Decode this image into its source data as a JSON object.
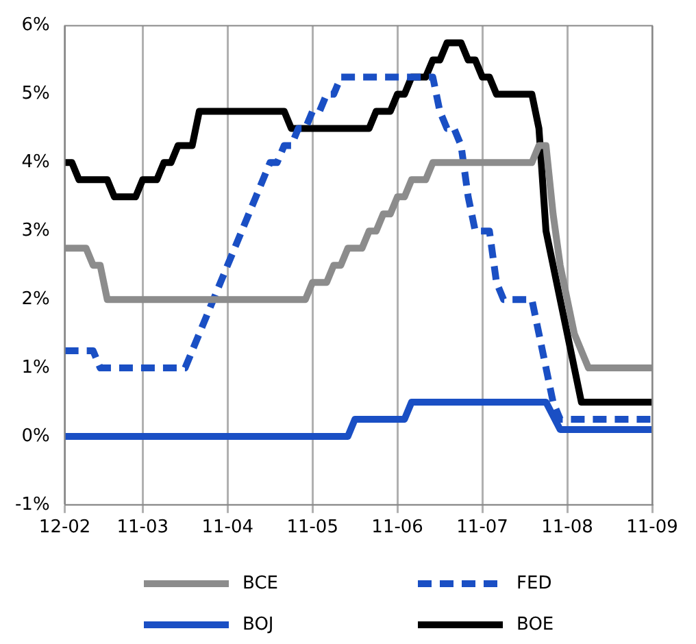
{
  "chart_data": {
    "type": "line",
    "legend": "bottom",
    "grid": "x",
    "marker": "none",
    "categories": [
      "12-02",
      null,
      null,
      null,
      null,
      null,
      null,
      null,
      null,
      null,
      null,
      "11-03",
      null,
      null,
      null,
      null,
      null,
      null,
      null,
      null,
      null,
      null,
      null,
      "11-04",
      null,
      null,
      null,
      null,
      null,
      null,
      null,
      null,
      null,
      null,
      null,
      "11-05",
      null,
      null,
      null,
      null,
      null,
      null,
      null,
      null,
      null,
      null,
      null,
      "11-06",
      null,
      null,
      null,
      null,
      null,
      null,
      null,
      null,
      null,
      null,
      null,
      "11-07",
      null,
      null,
      null,
      null,
      null,
      null,
      null,
      null,
      null,
      null,
      null,
      "11-08",
      null,
      null,
      null,
      null,
      null,
      null,
      null,
      null,
      null,
      null,
      null,
      "11-09"
    ],
    "ylim": [
      -1,
      6
    ],
    "yticks": [
      {
        "value": -1,
        "label": "-1%"
      },
      {
        "value": 0,
        "label": "0%"
      },
      {
        "value": 1,
        "label": "1%"
      },
      {
        "value": 2,
        "label": "2%"
      },
      {
        "value": 3,
        "label": "3%"
      },
      {
        "value": 4,
        "label": "4%"
      },
      {
        "value": 5,
        "label": "5%"
      },
      {
        "value": 6,
        "label": "6%"
      }
    ],
    "series": [
      {
        "name": "BCE",
        "color": "#8c8c8c",
        "line_style": "solid",
        "values": [
          2.75,
          2.75,
          2.75,
          2.75,
          2.5,
          2.5,
          2.0,
          2.0,
          2.0,
          2.0,
          2.0,
          2.0,
          2.0,
          2.0,
          2.0,
          2.0,
          2.0,
          2.0,
          2.0,
          2.0,
          2.0,
          2.0,
          2.0,
          2.0,
          2.0,
          2.0,
          2.0,
          2.0,
          2.0,
          2.0,
          2.0,
          2.0,
          2.0,
          2.0,
          2.0,
          2.25,
          2.25,
          2.25,
          2.5,
          2.5,
          2.75,
          2.75,
          2.75,
          3.0,
          3.0,
          3.25,
          3.25,
          3.5,
          3.5,
          3.75,
          3.75,
          3.75,
          4.0,
          4.0,
          4.0,
          4.0,
          4.0,
          4.0,
          4.0,
          4.0,
          4.0,
          4.0,
          4.0,
          4.0,
          4.0,
          4.0,
          4.0,
          4.25,
          4.25,
          3.25,
          2.5,
          2.0,
          1.5,
          1.25,
          1.0,
          1.0,
          1.0,
          1.0,
          1.0,
          1.0,
          1.0,
          1.0,
          1.0,
          1.0
        ]
      },
      {
        "name": "FED",
        "color": "#1a4fc4",
        "line_style": "dashed",
        "values": [
          1.25,
          1.25,
          1.25,
          1.25,
          1.25,
          1.0,
          1.0,
          1.0,
          1.0,
          1.0,
          1.0,
          1.0,
          1.0,
          1.0,
          1.0,
          1.0,
          1.0,
          1.0,
          1.25,
          1.5,
          1.75,
          2.0,
          2.25,
          2.5,
          2.75,
          3.0,
          3.25,
          3.5,
          3.75,
          4.0,
          4.0,
          4.25,
          4.25,
          4.5,
          4.5,
          4.75,
          4.75,
          5.0,
          5.0,
          5.25,
          5.25,
          5.25,
          5.25,
          5.25,
          5.25,
          5.25,
          5.25,
          5.25,
          5.25,
          5.25,
          5.25,
          5.25,
          5.25,
          4.75,
          4.5,
          4.5,
          4.25,
          3.5,
          3.0,
          3.0,
          3.0,
          2.25,
          2.0,
          2.0,
          2.0,
          2.0,
          2.0,
          1.5,
          1.0,
          0.5,
          0.25,
          0.25,
          0.25,
          0.25,
          0.25,
          0.25,
          0.25,
          0.25,
          0.25,
          0.25,
          0.25,
          0.25,
          0.25,
          0.25
        ]
      },
      {
        "name": "BOJ",
        "color": "#1a4fc4",
        "line_style": "solid",
        "values": [
          0,
          0,
          0,
          0,
          0,
          0,
          0,
          0,
          0,
          0,
          0,
          0,
          0,
          0,
          0,
          0,
          0,
          0,
          0,
          0,
          0,
          0,
          0,
          0,
          0,
          0,
          0,
          0,
          0,
          0,
          0,
          0,
          0,
          0,
          0,
          0,
          0,
          0,
          0,
          0,
          0,
          0.25,
          0.25,
          0.25,
          0.25,
          0.25,
          0.25,
          0.25,
          0.25,
          0.5,
          0.5,
          0.5,
          0.5,
          0.5,
          0.5,
          0.5,
          0.5,
          0.5,
          0.5,
          0.5,
          0.5,
          0.5,
          0.5,
          0.5,
          0.5,
          0.5,
          0.5,
          0.5,
          0.5,
          0.3,
          0.1,
          0.1,
          0.1,
          0.1,
          0.1,
          0.1,
          0.1,
          0.1,
          0.1,
          0.1,
          0.1,
          0.1,
          0.1,
          0.1
        ]
      },
      {
        "name": "BOE",
        "color": "#000000",
        "line_style": "solid",
        "values": [
          4.0,
          4.0,
          3.75,
          3.75,
          3.75,
          3.75,
          3.75,
          3.5,
          3.5,
          3.5,
          3.5,
          3.75,
          3.75,
          3.75,
          4.0,
          4.0,
          4.25,
          4.25,
          4.25,
          4.75,
          4.75,
          4.75,
          4.75,
          4.75,
          4.75,
          4.75,
          4.75,
          4.75,
          4.75,
          4.75,
          4.75,
          4.75,
          4.5,
          4.5,
          4.5,
          4.5,
          4.5,
          4.5,
          4.5,
          4.5,
          4.5,
          4.5,
          4.5,
          4.5,
          4.75,
          4.75,
          4.75,
          5.0,
          5.0,
          5.25,
          5.25,
          5.25,
          5.5,
          5.5,
          5.75,
          5.75,
          5.75,
          5.5,
          5.5,
          5.25,
          5.25,
          5.0,
          5.0,
          5.0,
          5.0,
          5.0,
          5.0,
          4.5,
          3.0,
          2.5,
          2.0,
          1.5,
          1.0,
          0.5,
          0.5,
          0.5,
          0.5,
          0.5,
          0.5,
          0.5,
          0.5,
          0.5,
          0.5,
          0.5
        ]
      }
    ]
  }
}
